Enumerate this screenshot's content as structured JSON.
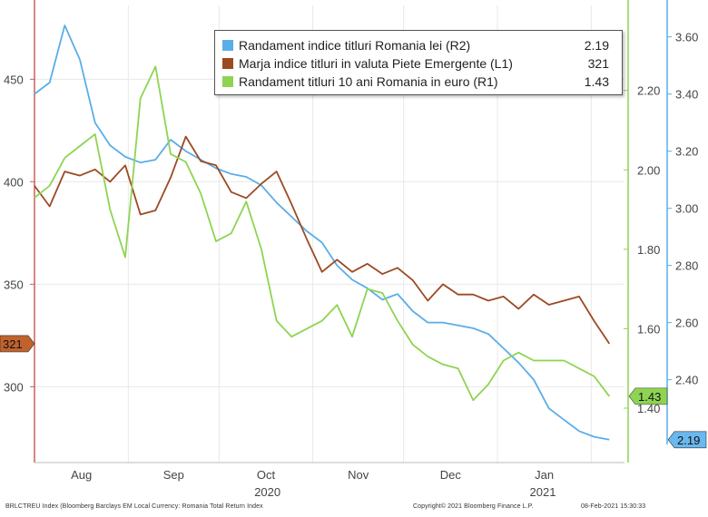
{
  "chart_data": {
    "type": "line",
    "x_months": [
      "Aug",
      "Sep",
      "Oct",
      "Nov",
      "Dec",
      "Jan"
    ],
    "x_years": [
      "2020",
      "2021"
    ],
    "x_range": [
      0,
      195
    ],
    "month_ticks": [
      0,
      31,
      61,
      92,
      122,
      153,
      184
    ],
    "left_axis": {
      "ticks": [
        300,
        350,
        400,
        450
      ],
      "ylim": [
        263,
        486
      ],
      "tick_labels": [
        "300",
        "350",
        "400",
        "450"
      ]
    },
    "right1_axis": {
      "ticks": [
        1.4,
        1.6,
        1.8,
        2.0,
        2.2
      ],
      "ylim": [
        1.263,
        2.414
      ],
      "tick_labels": [
        "1.40",
        "1.60",
        "1.80",
        "2.00",
        "2.20"
      ]
    },
    "right2_axis": {
      "ticks": [
        2.4,
        2.6,
        2.8,
        3.0,
        3.2,
        3.4,
        3.6
      ],
      "ylim": [
        2.11,
        3.71
      ],
      "tick_labels": [
        "2.40",
        "2.60",
        "2.80",
        "3.00",
        "3.20",
        "3.40",
        "3.60"
      ]
    },
    "series": [
      {
        "name": "Randament indice titluri Romania lei (R2)",
        "value_label": "2.19",
        "axis": "right2",
        "color": "#5aaee8",
        "x": [
          0,
          5,
          10,
          15,
          20,
          25,
          30,
          35,
          40,
          45,
          50,
          55,
          60,
          65,
          70,
          75,
          80,
          85,
          90,
          95,
          100,
          105,
          110,
          115,
          120,
          125,
          130,
          135,
          140,
          145,
          150,
          155,
          160,
          165,
          170,
          175,
          180,
          185,
          190
        ],
        "y": [
          3.4,
          3.44,
          3.64,
          3.52,
          3.3,
          3.22,
          3.18,
          3.16,
          3.17,
          3.24,
          3.2,
          3.17,
          3.14,
          3.12,
          3.11,
          3.08,
          3.02,
          2.97,
          2.92,
          2.88,
          2.8,
          2.75,
          2.72,
          2.68,
          2.7,
          2.64,
          2.6,
          2.6,
          2.59,
          2.58,
          2.56,
          2.51,
          2.46,
          2.4,
          2.3,
          2.26,
          2.22,
          2.2,
          2.19
        ]
      },
      {
        "name": "Marja indice titluri in valuta Piete Emergente  (L1)",
        "value_label": "321",
        "axis": "left",
        "color": "#9c4a22",
        "x": [
          0,
          5,
          10,
          15,
          20,
          25,
          30,
          35,
          40,
          45,
          50,
          55,
          60,
          65,
          70,
          75,
          80,
          85,
          90,
          95,
          100,
          105,
          110,
          115,
          120,
          125,
          130,
          135,
          140,
          145,
          150,
          155,
          160,
          165,
          170,
          175,
          180,
          185,
          190
        ],
        "y": [
          398,
          388,
          405,
          403,
          406,
          400,
          408,
          384,
          386,
          402,
          422,
          410,
          408,
          395,
          392,
          399,
          405,
          389,
          372,
          356,
          362,
          356,
          360,
          355,
          358,
          352,
          342,
          350,
          345,
          345,
          342,
          344,
          338,
          345,
          340,
          342,
          344,
          332,
          321
        ]
      },
      {
        "name": "Randament titluri 10 ani Romania in euro (R1)",
        "value_label": "1.43",
        "axis": "right1",
        "color": "#8ed452",
        "x": [
          0,
          5,
          10,
          15,
          20,
          25,
          30,
          35,
          40,
          45,
          50,
          55,
          60,
          65,
          70,
          75,
          80,
          85,
          90,
          95,
          100,
          105,
          110,
          115,
          120,
          125,
          130,
          135,
          140,
          145,
          150,
          155,
          160,
          165,
          170,
          175,
          180,
          185,
          190
        ],
        "y": [
          1.93,
          1.96,
          2.03,
          2.06,
          2.09,
          1.9,
          1.78,
          2.18,
          2.26,
          2.04,
          2.02,
          1.94,
          1.82,
          1.84,
          1.92,
          1.8,
          1.62,
          1.58,
          1.6,
          1.62,
          1.66,
          1.58,
          1.7,
          1.69,
          1.62,
          1.56,
          1.53,
          1.51,
          1.5,
          1.42,
          1.46,
          1.52,
          1.54,
          1.52,
          1.52,
          1.52,
          1.5,
          1.48,
          1.43
        ]
      }
    ]
  },
  "footer": {
    "left": "BRLCTREU Index (Bloomberg Barclays EM Local Currency: Romania Total Return Index",
    "center": "Copyright© 2021 Bloomberg Finance L.P.",
    "right": "08-Feb-2021 15:30:33"
  },
  "colors": {
    "grid": "#e8e8e8",
    "axis_left": "#c8605a",
    "axis_right1": "#8ed452",
    "axis_right2": "#5aaee8"
  }
}
